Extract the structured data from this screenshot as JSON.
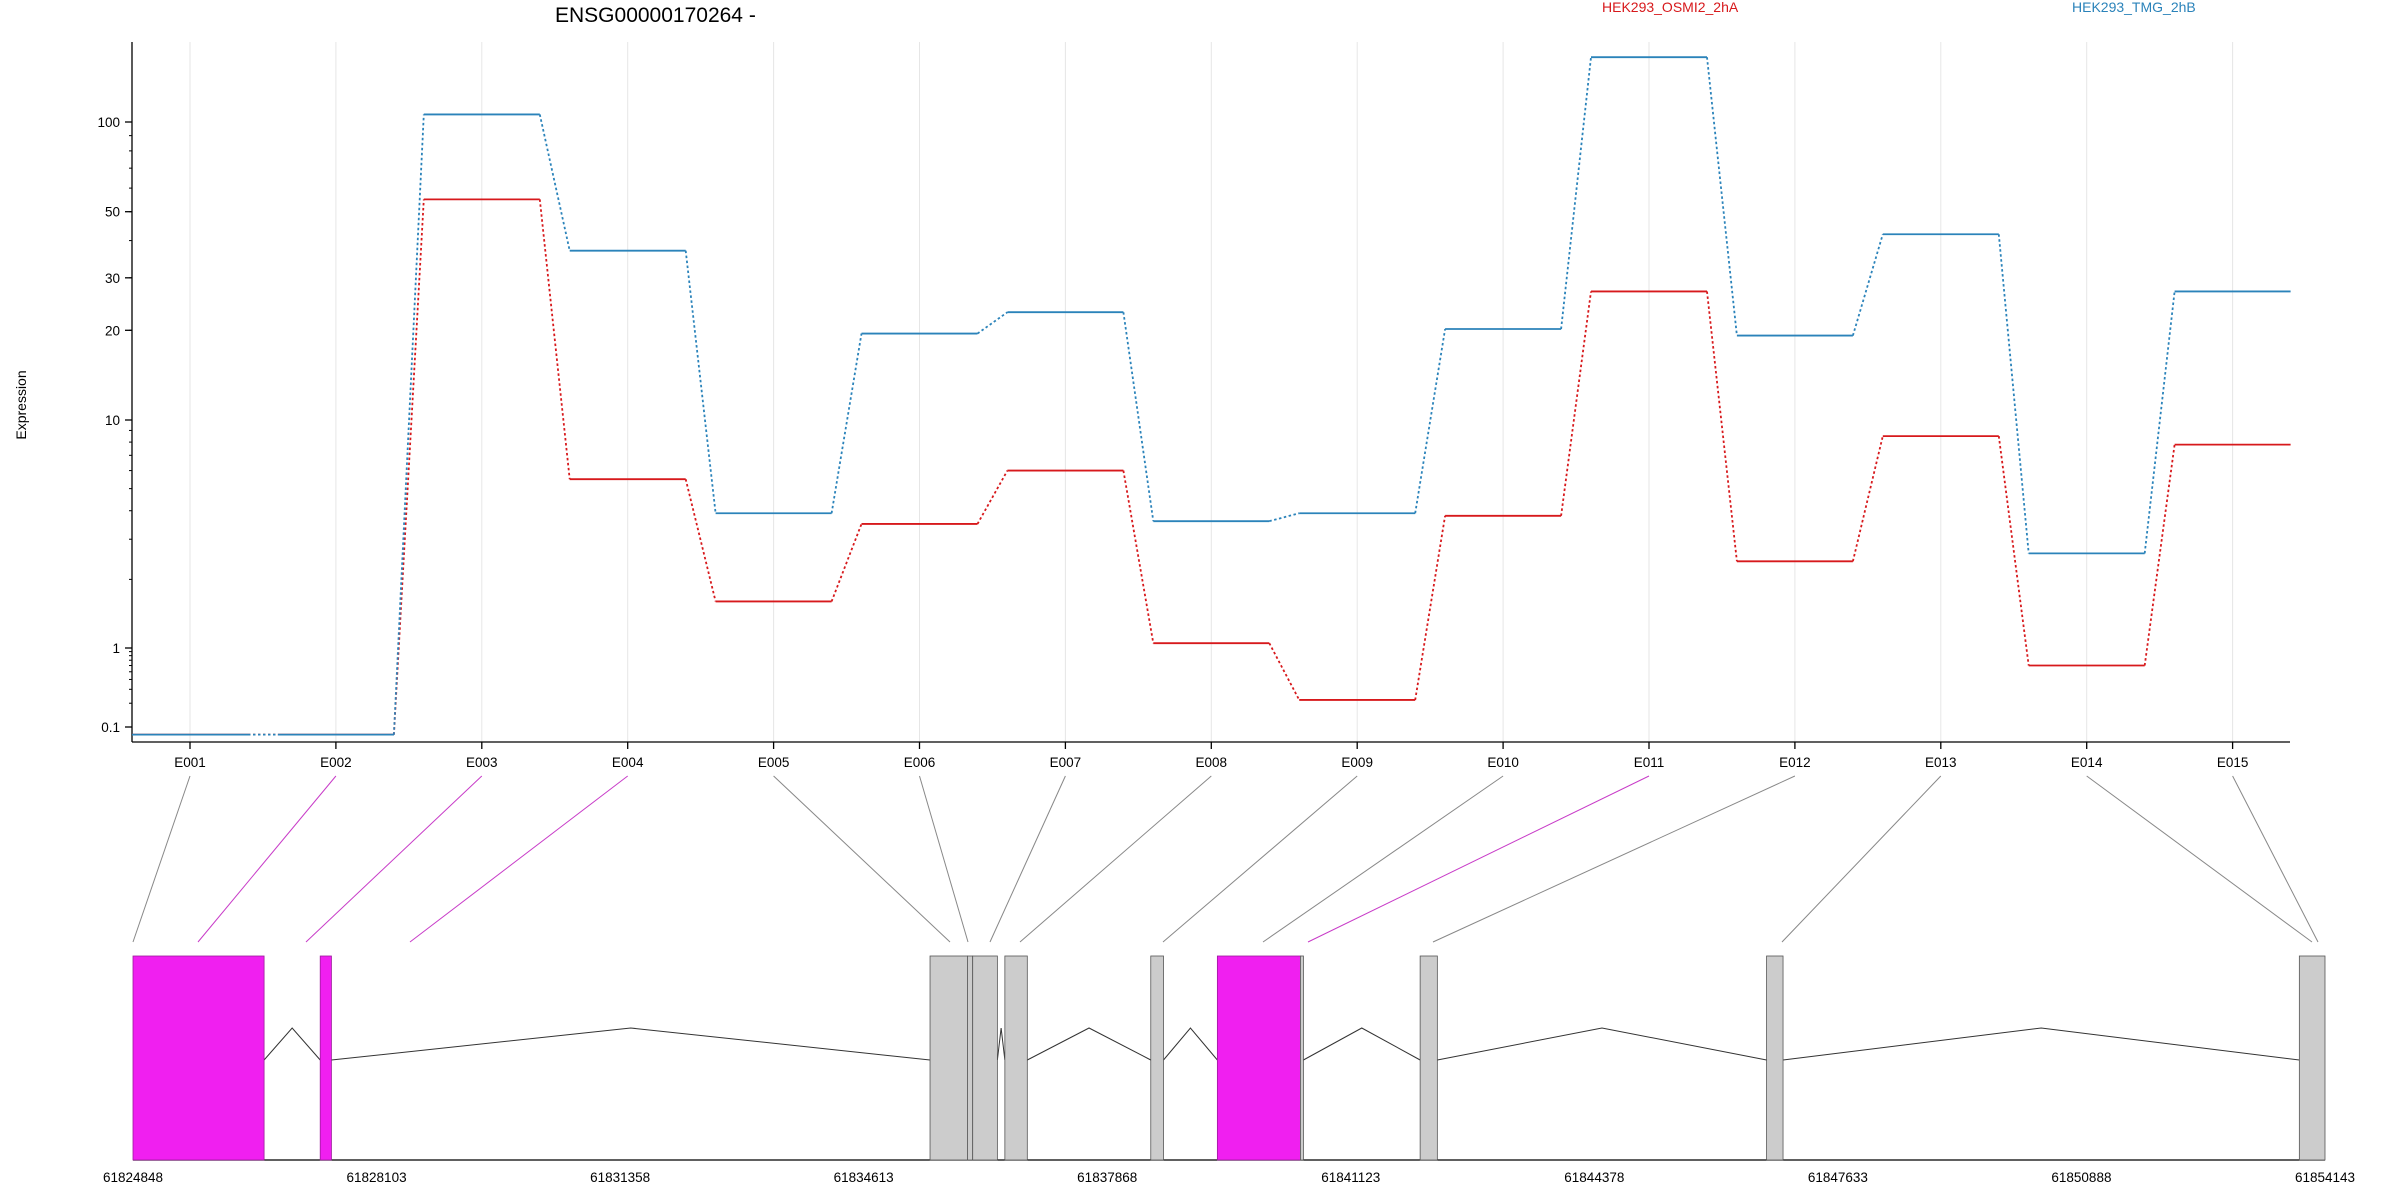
{
  "chart_data": {
    "type": "line",
    "title": "ENSG00000170264 -",
    "ylabel": "Expression",
    "xlabel": "",
    "y_scale": "log",
    "ylim": [
      0.08,
      300
    ],
    "y_ticks": [
      {
        "value": 0.1,
        "label": "0.1"
      },
      {
        "value": 1,
        "label": "1"
      },
      {
        "value": 10,
        "label": "10"
      },
      {
        "value": 20,
        "label": "20"
      },
      {
        "value": 30,
        "label": "30"
      },
      {
        "value": 50,
        "label": "50"
      },
      {
        "value": 100,
        "label": "100"
      }
    ],
    "categories": [
      "E001",
      "E002",
      "E003",
      "E004",
      "E005",
      "E006",
      "E007",
      "E008",
      "E009",
      "E010",
      "E011",
      "E012",
      "E013",
      "E014",
      "E015"
    ],
    "series": [
      {
        "name": "HEK293_OSMI2_2hA",
        "color": "#d7191c",
        "values": [
          0.08,
          0.08,
          55,
          5.5,
          1.6,
          3.5,
          6.0,
          1.05,
          0.22,
          3.8,
          27,
          2.4,
          8.5,
          0.6,
          7.8
        ]
      },
      {
        "name": "HEK293_TMG_2hB",
        "color": "#2b83ba",
        "values": [
          0.08,
          0.08,
          106,
          37,
          3.9,
          19.5,
          23,
          3.6,
          3.9,
          20.2,
          165,
          19.2,
          42,
          2.6,
          27
        ]
      }
    ],
    "legend_placement": "top",
    "grid": "vertical",
    "gene_model": {
      "coord_ticks": [
        "61824848",
        "61828103",
        "61831358",
        "61834613",
        "61837868",
        "61841123",
        "61844378",
        "61847633",
        "61850888",
        "61854143"
      ],
      "coord_range": [
        61824848,
        61854143
      ],
      "exons": [
        {
          "id": "E001",
          "start": 61824848,
          "end": 61826600,
          "highlight": true
        },
        {
          "id": "E002",
          "start": 61827350,
          "end": 61827500,
          "highlight": true
        },
        {
          "id": "E003",
          "start": 61835500,
          "end": 61836000,
          "highlight": false
        },
        {
          "id": "E004",
          "start": 61836000,
          "end": 61836070,
          "highlight": false
        },
        {
          "id": "E005",
          "start": 61836070,
          "end": 61836400,
          "highlight": false
        },
        {
          "id": "E006",
          "start": 61836500,
          "end": 61836800,
          "highlight": false
        },
        {
          "id": "E007",
          "start": 61838450,
          "end": 61838620,
          "highlight": false
        },
        {
          "id": "E008",
          "start": 61839340,
          "end": 61840450,
          "highlight": true
        },
        {
          "id": "E009",
          "start": 61840450,
          "end": 61840490,
          "highlight": false
        },
        {
          "id": "E010",
          "start": 61842050,
          "end": 61842280,
          "highlight": false
        },
        {
          "id": "E011",
          "start": 61846680,
          "end": 61846900,
          "highlight": false
        },
        {
          "id": "E012",
          "start": 61853800,
          "end": 61854143,
          "highlight": false
        }
      ],
      "highlight_color": "#f01ff0",
      "exon_color": "#cccccc"
    }
  }
}
